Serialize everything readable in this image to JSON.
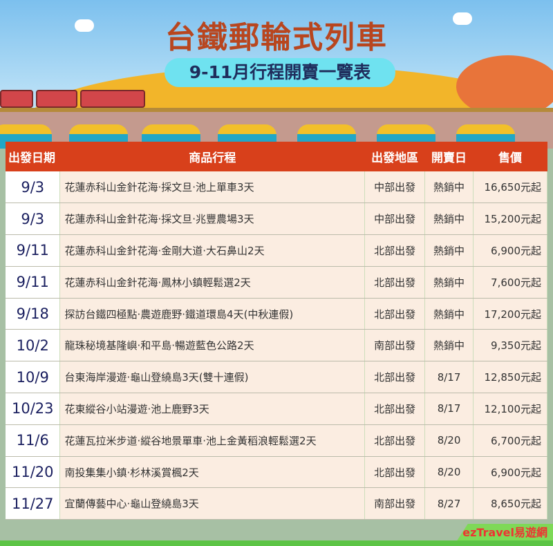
{
  "header": {
    "title": "台鐵郵輪式列車",
    "subtitle": "9-11月行程開賣一覽表"
  },
  "table": {
    "columns": [
      "出發日期",
      "商品行程",
      "出發地區",
      "開賣日",
      "售價"
    ],
    "rows": [
      [
        "9/3",
        "花蓮赤科山金針花海·採文旦·池上單車3天",
        "中部出發",
        "熱銷中",
        "16,650元起"
      ],
      [
        "9/3",
        "花蓮赤科山金針花海·採文旦·兆豐農場3天",
        "中部出發",
        "熱銷中",
        "15,200元起"
      ],
      [
        "9/11",
        "花蓮赤科山金針花海·金剛大道·大石鼻山2天",
        "北部出發",
        "熱銷中",
        "6,900元起"
      ],
      [
        "9/11",
        "花蓮赤科山金針花海·鳳林小鎮輕鬆選2天",
        "北部出發",
        "熱銷中",
        "7,600元起"
      ],
      [
        "9/18",
        "探訪台鐵四極點·農遊鹿野·鐵道環島4天(中秋連假)",
        "北部出發",
        "熱銷中",
        "17,200元起"
      ],
      [
        "10/2",
        "龍珠秘境基隆嶼·和平島·暢遊藍色公路2天",
        "南部出發",
        "熱銷中",
        "9,350元起"
      ],
      [
        "10/9",
        "台東海岸漫遊·龜山登繞島3天(雙十連假)",
        "北部出發",
        "8/17",
        "12,850元起"
      ],
      [
        "10/23",
        "花東縱谷小站漫遊·池上鹿野3天",
        "北部出發",
        "8/17",
        "12,100元起"
      ],
      [
        "11/6",
        "花蓮瓦拉米步道·縱谷地景單車·池上金黃稻浪輕鬆選2天",
        "北部出發",
        "8/20",
        "6,700元起"
      ],
      [
        "11/20",
        "南投集集小鎮·杉林溪賞楓2天",
        "北部出發",
        "8/20",
        "6,900元起"
      ],
      [
        "11/27",
        "宜蘭傳藝中心·龜山登繞島3天",
        "南部出發",
        "8/27",
        "8,650元起"
      ]
    ]
  },
  "footer": {
    "logo": "ezTravel易遊網"
  },
  "colors": {
    "header_red": "#d8401b",
    "title": "#b8461f",
    "date_text": "#1b2060"
  }
}
